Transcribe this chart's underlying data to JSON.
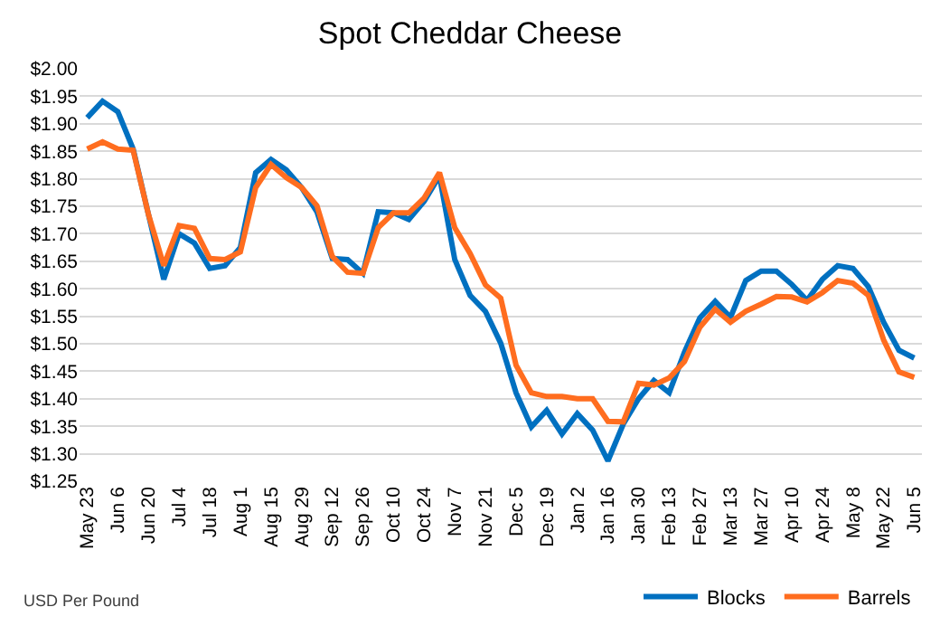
{
  "chart_data": {
    "type": "line",
    "title": "Spot Cheddar Cheese",
    "categories": [
      "May 23",
      null,
      "Jun 6",
      null,
      "Jun 20",
      null,
      "Jul 4",
      null,
      "Jul 18",
      null,
      "Aug 1",
      null,
      "Aug 15",
      null,
      "Aug 29",
      null,
      "Sep 12",
      null,
      "Sep 26",
      null,
      "Oct 10",
      null,
      "Oct 24",
      null,
      "Nov 7",
      null,
      "Nov 21",
      null,
      "Dec 5",
      null,
      "Dec 19",
      null,
      "Jan 2",
      null,
      "Jan 16",
      null,
      "Jan 30",
      null,
      "Feb 13",
      null,
      "Feb 27",
      null,
      "Mar 13",
      null,
      "Mar 27",
      null,
      "Apr 10",
      null,
      "Apr 24",
      null,
      "May 8",
      null,
      "May 22",
      null,
      "Jun 5"
    ],
    "series": [
      {
        "name": "Blocks",
        "color": "#0070c0",
        "values": [
          1.911,
          1.941,
          1.922,
          1.854,
          1.735,
          1.617,
          1.7,
          1.683,
          1.637,
          1.642,
          1.675,
          1.811,
          1.835,
          1.816,
          1.784,
          1.74,
          1.655,
          1.653,
          1.628,
          1.74,
          1.738,
          1.726,
          1.759,
          1.805,
          1.653,
          1.588,
          1.559,
          1.501,
          1.411,
          1.349,
          1.379,
          1.336,
          1.373,
          1.343,
          1.287,
          1.354,
          1.4,
          1.433,
          1.411,
          1.485,
          1.547,
          1.577,
          1.548,
          1.615,
          1.632,
          1.632,
          1.608,
          1.579,
          1.617,
          1.642,
          1.637,
          1.604,
          1.539,
          1.488,
          1.474
        ]
      },
      {
        "name": "Barrels",
        "color": "#ff6d1f",
        "values": [
          1.854,
          1.867,
          1.854,
          1.852,
          1.735,
          1.642,
          1.715,
          1.71,
          1.655,
          1.653,
          1.667,
          1.784,
          1.826,
          1.802,
          1.784,
          1.751,
          1.659,
          1.63,
          1.628,
          1.711,
          1.738,
          1.738,
          1.765,
          1.811,
          1.711,
          1.664,
          1.607,
          1.583,
          1.461,
          1.411,
          1.404,
          1.404,
          1.4,
          1.4,
          1.359,
          1.358,
          1.428,
          1.425,
          1.438,
          1.468,
          1.53,
          1.563,
          1.539,
          1.559,
          1.572,
          1.586,
          1.585,
          1.576,
          1.593,
          1.615,
          1.61,
          1.588,
          1.507,
          1.449,
          1.439
        ]
      }
    ],
    "ylim": [
      1.25,
      2.0
    ],
    "yticks": [
      {
        "value": 1.25,
        "label": "$1.25"
      },
      {
        "value": 1.3,
        "label": "$1.30"
      },
      {
        "value": 1.35,
        "label": "$1.35"
      },
      {
        "value": 1.4,
        "label": "$1.40"
      },
      {
        "value": 1.45,
        "label": "$1.45"
      },
      {
        "value": 1.5,
        "label": "$1.50"
      },
      {
        "value": 1.55,
        "label": "$1.55"
      },
      {
        "value": 1.6,
        "label": "$1.60"
      },
      {
        "value": 1.65,
        "label": "$1.65"
      },
      {
        "value": 1.7,
        "label": "$1.70"
      },
      {
        "value": 1.75,
        "label": "$1.75"
      },
      {
        "value": 1.8,
        "label": "$1.80"
      },
      {
        "value": 1.85,
        "label": "$1.85"
      },
      {
        "value": 1.9,
        "label": "$1.90"
      },
      {
        "value": 1.95,
        "label": "$1.95"
      },
      {
        "value": 2.0,
        "label": "$2.00"
      }
    ],
    "grid": "y",
    "legend": "bottom right",
    "line_style": "solid",
    "marker": "none",
    "annotations": [
      "USD Per Pound"
    ]
  }
}
